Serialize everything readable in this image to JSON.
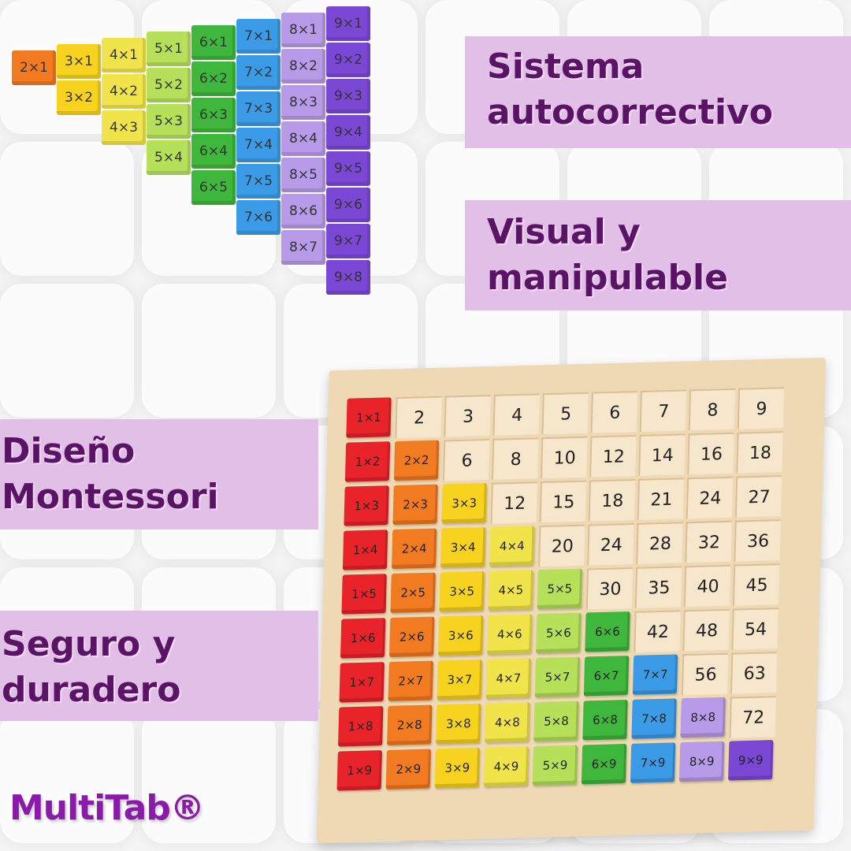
{
  "labels": [
    {
      "id": "sistema",
      "lines": [
        "Sistema",
        "autocorrectivo"
      ]
    },
    {
      "id": "visual",
      "lines": [
        "Visual y",
        "manipulable"
      ]
    },
    {
      "id": "diseno",
      "lines": [
        "Diseño",
        "Montessori"
      ]
    },
    {
      "id": "seguro",
      "lines": [
        "Seguro y",
        "duradero"
      ]
    }
  ],
  "logo": "MultiTab®",
  "colors": {
    "label_bg": "#e1bfe6",
    "label_text": "#5a1466",
    "logo": "#8a1aaa",
    "columns": [
      "#e8232a",
      "#f27a20",
      "#f7d21e",
      "#f0e44a",
      "#b6e05a",
      "#3fb63c",
      "#3c9be6",
      "#b79be8",
      "#7b48d6"
    ]
  },
  "staircase": [
    {
      "n": 2,
      "blocks": [
        "2×1"
      ]
    },
    {
      "n": 3,
      "blocks": [
        "3×1",
        "3×2"
      ]
    },
    {
      "n": 4,
      "blocks": [
        "4×1",
        "4×2",
        "4×3"
      ]
    },
    {
      "n": 5,
      "blocks": [
        "5×1",
        "5×2",
        "5×3",
        "5×4"
      ]
    },
    {
      "n": 6,
      "blocks": [
        "6×1",
        "6×2",
        "6×3",
        "6×4",
        "6×5"
      ]
    },
    {
      "n": 7,
      "blocks": [
        "7×1",
        "7×2",
        "7×3",
        "7×4",
        "7×5",
        "7×6"
      ]
    },
    {
      "n": 8,
      "blocks": [
        "8×1",
        "8×2",
        "8×3",
        "8×4",
        "8×5",
        "8×6",
        "8×7"
      ]
    },
    {
      "n": 9,
      "blocks": [
        "9×1",
        "9×2",
        "9×3",
        "9×4",
        "9×5",
        "9×6",
        "9×7",
        "9×8"
      ]
    }
  ],
  "board": {
    "size": 9,
    "tile_format": "c×r"
  }
}
